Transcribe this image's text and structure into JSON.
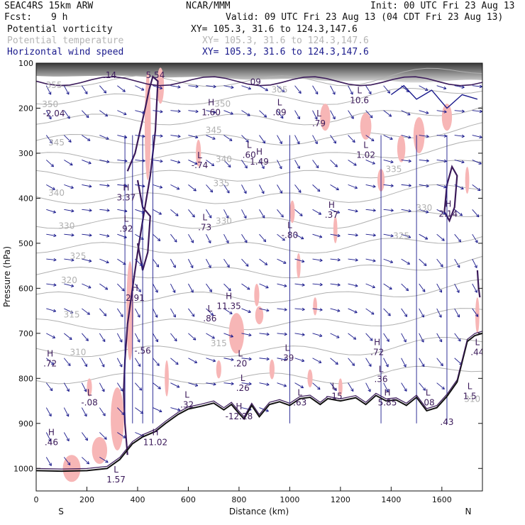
{
  "header": {
    "model": "SEAC4RS 15km ARW",
    "org": "NCAR/MMM",
    "init": "Init: 00 UTC Fri 23 Aug 13",
    "fcst_label": "Fcst:",
    "fcst_value": "9 h",
    "valid": "Valid: 09 UTC Fri 23 Aug 13 (04 CDT Fri 23 Aug 13)"
  },
  "fields": [
    {
      "name": "Potential vorticity",
      "xy": "XY= 105.3, 31.6 to 124.3,147.6",
      "color": "#111111"
    },
    {
      "name": "Potential temperature",
      "xy": "XY= 105.3, 31.6 to 124.3,147.6",
      "color": "#b4b4b4"
    },
    {
      "name": "Horizontal wind speed",
      "xy": "XY= 105.3, 31.6 to 124.3,147.6",
      "color": "#1a1a8c"
    }
  ],
  "colors": {
    "pv_contour": "#3b1a5a",
    "theta": "#a8a8a8",
    "wind": "#1a1a8c",
    "pink_fill": "#f7b6b6",
    "terrain": "#111111"
  },
  "chart_data": {
    "type": "cross-section",
    "xlabel": "Distance (km)",
    "ylabel": "Pressure (hPa)",
    "xlim": [
      0,
      1760
    ],
    "ylim": [
      1050,
      100
    ],
    "x_ticks": [
      0,
      200,
      400,
      600,
      800,
      1000,
      1200,
      1400,
      1600
    ],
    "y_ticks": [
      100,
      200,
      300,
      400,
      500,
      600,
      700,
      800,
      900,
      1000
    ],
    "x_end_labels": {
      "left": "S",
      "right": "N"
    },
    "theta_labels": [
      {
        "v": "355",
        "x": 70,
        "p": 155
      },
      {
        "v": "350",
        "x": 55,
        "p": 198
      },
      {
        "v": "345",
        "x": 80,
        "p": 283
      },
      {
        "v": "340",
        "x": 80,
        "p": 395
      },
      {
        "v": "330",
        "x": 120,
        "p": 468
      },
      {
        "v": "325",
        "x": 165,
        "p": 535
      },
      {
        "v": "320",
        "x": 130,
        "p": 588
      },
      {
        "v": "315",
        "x": 140,
        "p": 665
      },
      {
        "v": "310",
        "x": 165,
        "p": 748
      },
      {
        "v": "305",
        "x": 960,
        "p": 165
      },
      {
        "v": "350",
        "x": 735,
        "p": 197
      },
      {
        "v": "345",
        "x": 700,
        "p": 255
      },
      {
        "v": "340",
        "x": 740,
        "p": 320
      },
      {
        "v": "335",
        "x": 730,
        "p": 373
      },
      {
        "v": "330",
        "x": 740,
        "p": 457
      },
      {
        "v": "315",
        "x": 720,
        "p": 729
      },
      {
        "v": "335",
        "x": 1410,
        "p": 342
      },
      {
        "v": "330",
        "x": 1530,
        "p": 428
      },
      {
        "v": "325",
        "x": 1440,
        "p": 490
      },
      {
        "v": "310",
        "x": 1720,
        "p": 852
      }
    ],
    "extrema": [
      {
        "t": "H",
        "v": "1.60",
        "x": 690,
        "p": 213
      },
      {
        "t": "L",
        "v": ".09",
        "x": 960,
        "p": 213
      },
      {
        "t": "L",
        "v": "10.6",
        "x": 1275,
        "p": 186
      },
      {
        "t": "L",
        "v": ".79",
        "x": 1115,
        "p": 237
      },
      {
        "t": "L",
        "v": "1.02",
        "x": 1300,
        "p": 307
      },
      {
        "t": "L",
        "v": ".60",
        "x": 840,
        "p": 307
      },
      {
        "t": "H",
        "v": "1.49",
        "x": 880,
        "p": 322
      },
      {
        "t": "L",
        "v": "-.74",
        "x": 645,
        "p": 330
      },
      {
        "t": "H",
        "v": "3.37",
        "x": 355,
        "p": 402
      },
      {
        "t": "L",
        "v": ".92",
        "x": 355,
        "p": 471
      },
      {
        "t": "L",
        "v": ".73",
        "x": 665,
        "p": 468
      },
      {
        "t": "L",
        "v": "-.80",
        "x": 1000,
        "p": 485
      },
      {
        "t": "H",
        "v": ".37",
        "x": 1165,
        "p": 440
      },
      {
        "t": "H",
        "v": "2.14",
        "x": 1625,
        "p": 438
      },
      {
        "t": "H",
        "v": "2.91",
        "x": 390,
        "p": 625
      },
      {
        "t": "H",
        "v": "11.35",
        "x": 760,
        "p": 643
      },
      {
        "t": "L",
        "v": ".86",
        "x": 685,
        "p": 670
      },
      {
        "t": "L",
        "v": ".39",
        "x": 990,
        "p": 758
      },
      {
        "t": "H",
        "v": ".72",
        "x": 1345,
        "p": 745
      },
      {
        "t": "L",
        "v": ".44",
        "x": 1740,
        "p": 745
      },
      {
        "t": "H",
        "v": ".72",
        "x": 55,
        "p": 770
      },
      {
        "t": "L",
        "v": ".20",
        "x": 805,
        "p": 770
      },
      {
        "t": "L",
        "v": ".26",
        "x": 815,
        "p": 825
      },
      {
        "t": "L",
        "v": ".36",
        "x": 1360,
        "p": 805
      },
      {
        "t": "L",
        "v": "-.08",
        "x": 210,
        "p": 857
      },
      {
        "t": "L",
        "v": ".32",
        "x": 595,
        "p": 862
      },
      {
        "t": "L",
        "v": ".63",
        "x": 1040,
        "p": 857
      },
      {
        "t": "L",
        "v": "-.15",
        "x": 1175,
        "p": 843
      },
      {
        "t": "H",
        "v": "5.85",
        "x": 1385,
        "p": 857
      },
      {
        "t": "L",
        "v": ".08",
        "x": 1545,
        "p": 857
      },
      {
        "t": "L",
        "v": "1.5",
        "x": 1710,
        "p": 843
      },
      {
        "t": "H",
        "v": "-12.28",
        "x": 800,
        "p": 888
      },
      {
        "t": "H",
        "v": ".46",
        "x": 60,
        "p": 945
      },
      {
        "t": "H",
        "v": "11.02",
        "x": 470,
        "p": 945
      },
      {
        "t": "L",
        "v": "1.57",
        "x": 315,
        "p": 1028
      },
      {
        "t": "",
        "v": "-2.04",
        "x": 70,
        "p": 215
      },
      {
        "t": "",
        "v": ".14",
        "x": 290,
        "p": 130
      },
      {
        "t": "",
        "v": "5.54",
        "x": 470,
        "p": 130
      },
      {
        "t": "",
        "v": ".09",
        "x": 860,
        "p": 145
      },
      {
        "t": "",
        "v": "-.56",
        "x": 420,
        "p": 742
      },
      {
        "t": "",
        "v": ".43",
        "x": 1620,
        "p": 900
      }
    ]
  }
}
